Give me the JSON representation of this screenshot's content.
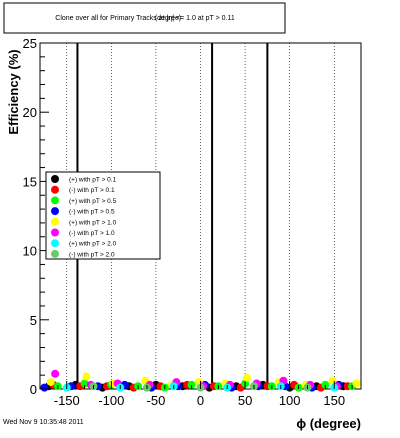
{
  "chart_data": {
    "type": "scatter",
    "title": "Clone  over all for Primary Tracks at |η| <= 1.0 at pT > 0.11",
    "title_extra": "(degree)",
    "xlabel": "ϕ (degree)",
    "ylabel": "Efficiency (%)",
    "xlim": [
      -180,
      180
    ],
    "ylim": [
      0,
      25
    ],
    "x_ticks": [
      -150,
      -100,
      -50,
      0,
      50,
      100,
      150
    ],
    "y_ticks": [
      0,
      5,
      10,
      15,
      20,
      25
    ],
    "grid": true,
    "legend_position": "middle-left",
    "spikes": [
      {
        "x": -138,
        "y": 25
      },
      {
        "x": 13,
        "y": 25
      },
      {
        "x": 75,
        "y": 25
      }
    ],
    "series": [
      {
        "name": "(+) with pT > 0.1",
        "color": "#000000",
        "x": [
          -170,
          -140,
          -110,
          -80,
          -50,
          -20,
          10,
          40,
          70,
          100,
          130,
          160
        ],
        "y": [
          0.2,
          0.3,
          0.1,
          0.2,
          0.3,
          0.2,
          0.1,
          0.2,
          0.3,
          0.1,
          0.2,
          0.2
        ]
      },
      {
        "name": "(-) with pT > 0.1",
        "color": "#ff0000",
        "x": [
          -165,
          -135,
          -105,
          -75,
          -45,
          -15,
          15,
          45,
          75,
          105,
          135,
          165
        ],
        "y": [
          0.3,
          0.2,
          0.2,
          0.1,
          0.2,
          0.3,
          0.2,
          0.1,
          0.2,
          0.3,
          0.1,
          0.2
        ]
      },
      {
        "name": "(+) with pT > 0.5",
        "color": "#00ff00",
        "x": [
          -160,
          -130,
          -100,
          -70,
          -40,
          -10,
          20,
          50,
          80,
          110,
          140,
          170
        ],
        "y": [
          0.2,
          0.4,
          0.3,
          0.2,
          0.1,
          0.3,
          0.2,
          0.4,
          0.2,
          0.1,
          0.3,
          0.2
        ]
      },
      {
        "name": "(-) with pT > 0.5",
        "color": "#0000ff",
        "x": [
          -175,
          -145,
          -115,
          -85,
          -55,
          -25,
          5,
          35,
          65,
          95,
          125,
          155
        ],
        "y": [
          0.1,
          0.2,
          0.2,
          0.3,
          0.1,
          0.2,
          0.3,
          0.1,
          0.2,
          0.2,
          0.1,
          0.3
        ]
      },
      {
        "name": "(+) with pT > 1.0",
        "color": "#ffff00",
        "x": [
          -168,
          -128,
          -98,
          -62,
          -32,
          -2,
          28,
          52,
          88,
          118,
          148,
          175
        ],
        "y": [
          0.5,
          0.9,
          0.4,
          0.6,
          0.3,
          0.5,
          0.4,
          0.8,
          0.5,
          0.3,
          0.6,
          0.4
        ]
      },
      {
        "name": "(-) with pT > 1.0",
        "color": "#ff00ff",
        "x": [
          -163,
          -123,
          -93,
          -57,
          -27,
          3,
          33,
          63,
          93,
          123,
          153
        ],
        "y": [
          1.1,
          0.3,
          0.4,
          0.3,
          0.5,
          0.2,
          0.3,
          0.4,
          0.6,
          0.3,
          0.2
        ]
      },
      {
        "name": "(+) with pT > 2.0",
        "color": "#00ffff",
        "x": [
          -150,
          -90,
          -30,
          30,
          90,
          150
        ],
        "y": [
          0.1,
          0.1,
          0.2,
          0.1,
          0.2,
          0.1
        ]
      },
      {
        "name": "(-) with pT > 2.0",
        "color": "#66cc66",
        "x": [
          -120,
          -60,
          0,
          60,
          120
        ],
        "y": [
          0.2,
          0.1,
          0.1,
          0.2,
          0.1
        ]
      }
    ]
  },
  "footer": {
    "timestamp": "Wed Nov  9 10:35:48 2011"
  }
}
